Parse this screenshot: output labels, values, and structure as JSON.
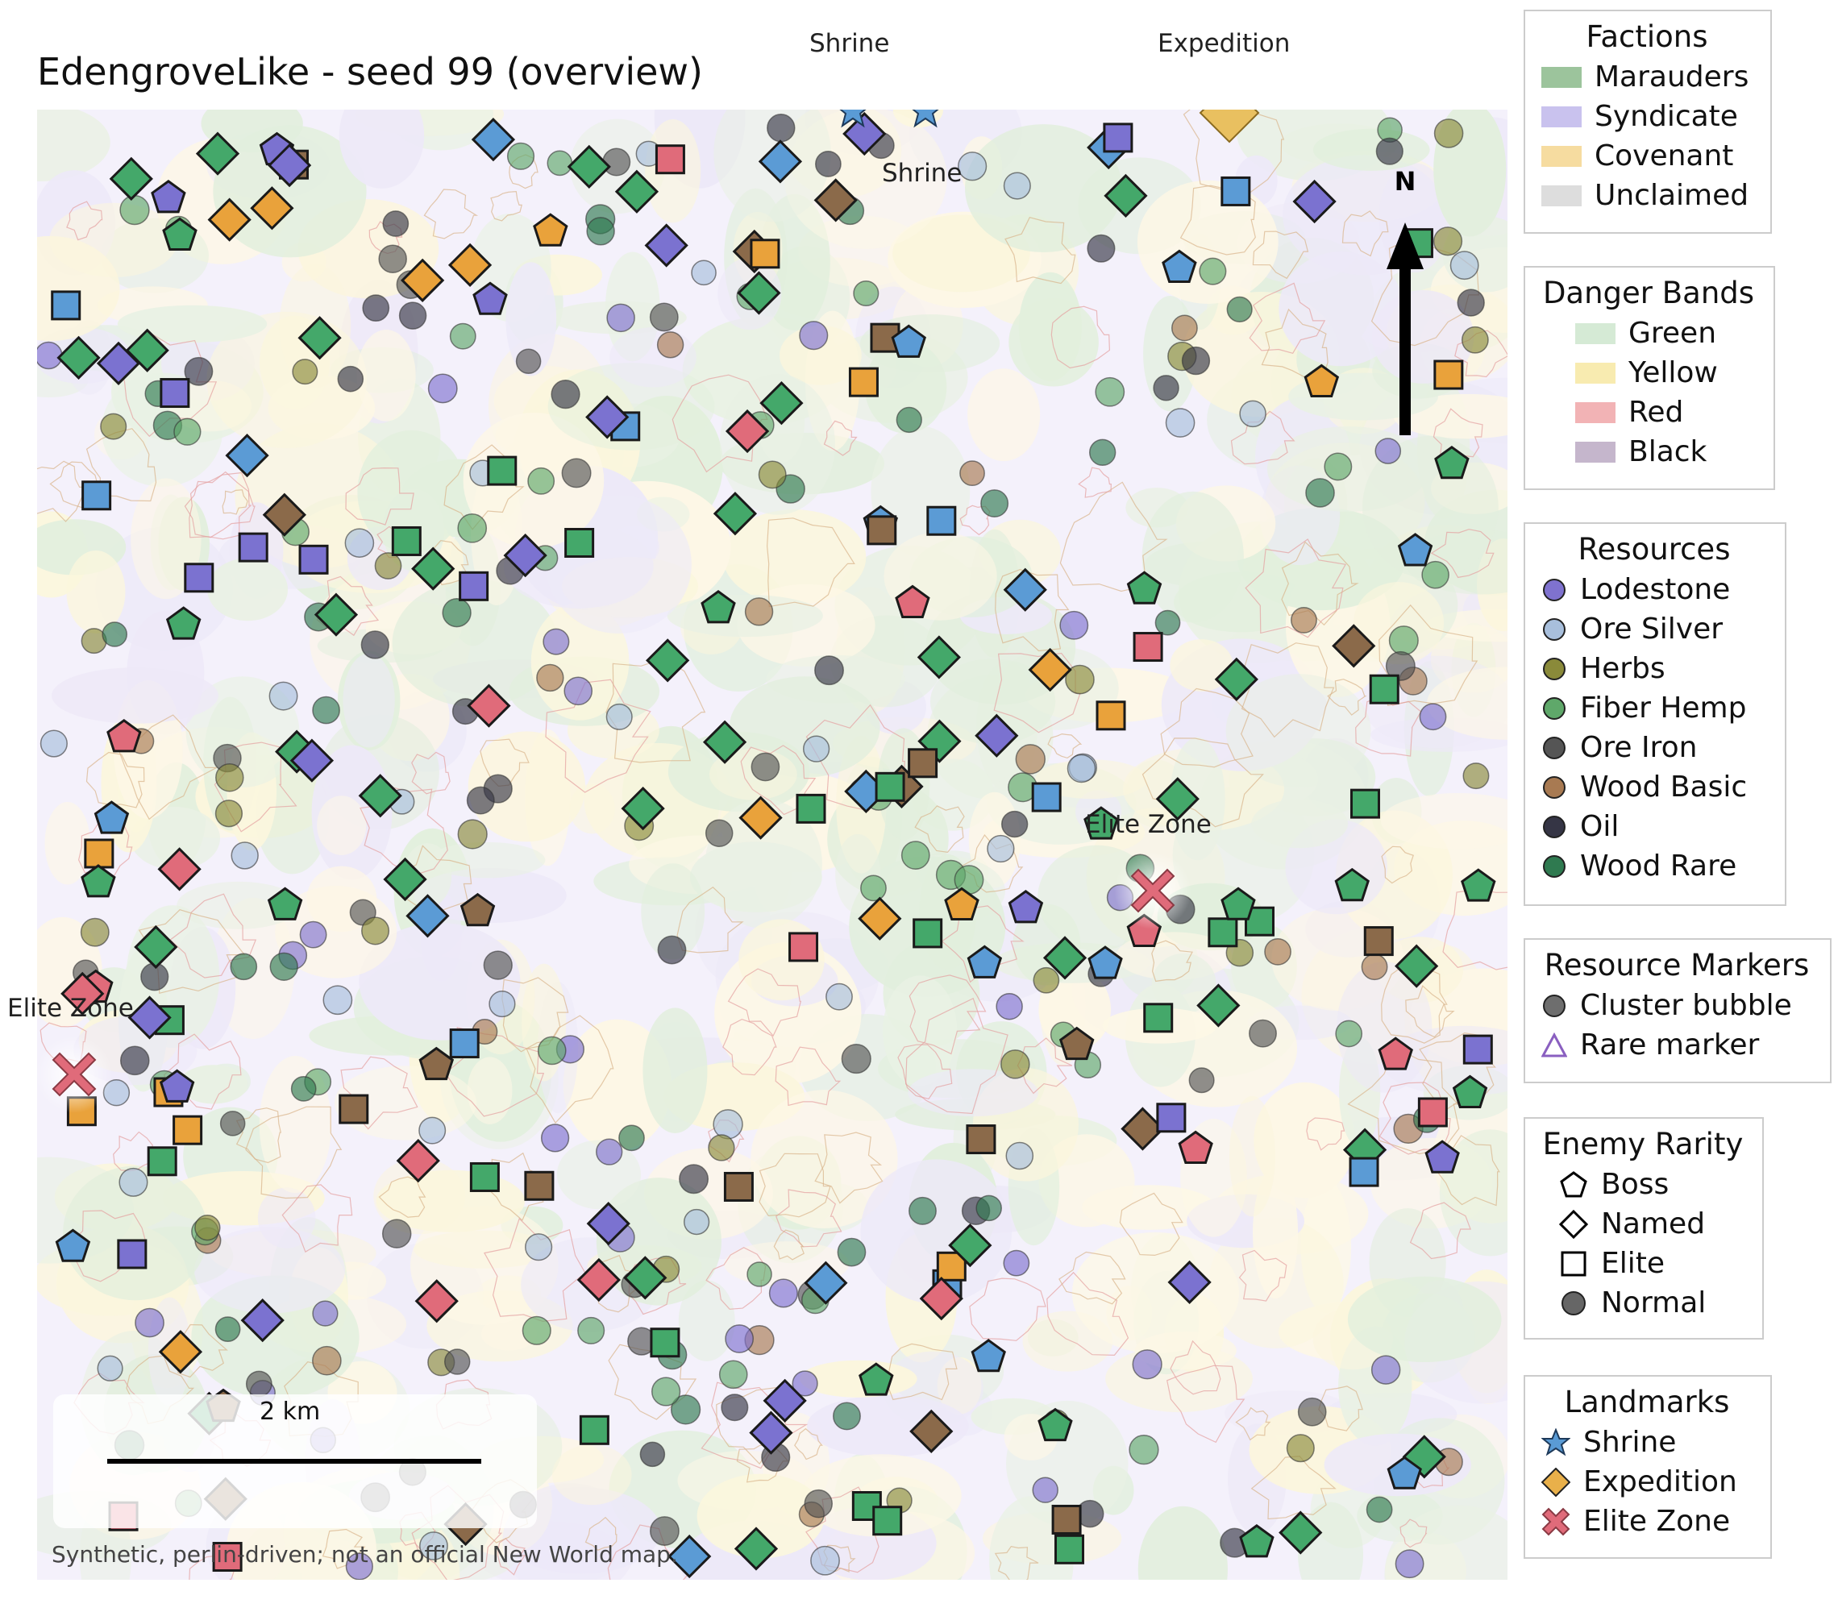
{
  "title": "EdengroveLike - seed 99 (overview)",
  "footnote": "Synthetic, perlin-driven; not an official New World map.",
  "scale_bar": {
    "label": "2 km"
  },
  "compass": {
    "label": "N"
  },
  "top_labels": [
    {
      "text": "Shrine"
    },
    {
      "text": "Expedition"
    }
  ],
  "map_labels": [
    {
      "text": "Shrine",
      "kind": "shrine"
    },
    {
      "text": "Elite Zone",
      "kind": "elite"
    },
    {
      "text": "Elite Zone",
      "kind": "elite"
    }
  ],
  "legends": {
    "factions": {
      "title": "Factions",
      "items": [
        {
          "label": "Marauders",
          "color": "#9cc49c"
        },
        {
          "label": "Syndicate",
          "color": "#c9c2ee"
        },
        {
          "label": "Covenant",
          "color": "#f6dca0"
        },
        {
          "label": "Unclaimed",
          "color": "#dddddd"
        }
      ]
    },
    "danger": {
      "title": "Danger Bands",
      "items": [
        {
          "label": "Green",
          "color": "#d5ead5"
        },
        {
          "label": "Yellow",
          "color": "#f8ebb0"
        },
        {
          "label": "Red",
          "color": "#f2b3b5"
        },
        {
          "label": "Black",
          "color": "#c5b6cc"
        }
      ]
    },
    "resources": {
      "title": "Resources",
      "items": [
        {
          "label": "Lodestone",
          "color": "#7f72cf"
        },
        {
          "label": "Ore Silver",
          "color": "#a8bfdc"
        },
        {
          "label": "Herbs",
          "color": "#8a8a3a"
        },
        {
          "label": "Fiber Hemp",
          "color": "#5fa86a"
        },
        {
          "label": "Ore Iron",
          "color": "#555555"
        },
        {
          "label": "Wood Basic",
          "color": "#a87a52"
        },
        {
          "label": "Oil",
          "color": "#353545"
        },
        {
          "label": "Wood Rare",
          "color": "#2f7a50"
        }
      ]
    },
    "markers": {
      "title": "Resource Markers",
      "items": [
        {
          "label": "Cluster bubble",
          "icon": "circle"
        },
        {
          "label": "Rare marker",
          "icon": "triangle"
        }
      ]
    },
    "rarity": {
      "title": "Enemy Rarity",
      "items": [
        {
          "label": "Boss",
          "icon": "pentagon"
        },
        {
          "label": "Named",
          "icon": "diamond"
        },
        {
          "label": "Elite",
          "icon": "square"
        },
        {
          "label": "Normal",
          "icon": "circle"
        }
      ]
    },
    "landmarks": {
      "title": "Landmarks",
      "items": [
        {
          "label": "Shrine",
          "icon": "star",
          "color": "#5a9bd5"
        },
        {
          "label": "Expedition",
          "icon": "diamond",
          "color": "#e9b04a"
        },
        {
          "label": "Elite Zone",
          "icon": "cross",
          "color": "#e06b7a"
        }
      ]
    }
  },
  "enemy_colors": {
    "green": "#44a86a",
    "blue": "#5b9bd5",
    "purple": "#7b72d0",
    "red": "#e06b7a",
    "brown": "#8b6a4a",
    "orange": "#e9a23b"
  }
}
